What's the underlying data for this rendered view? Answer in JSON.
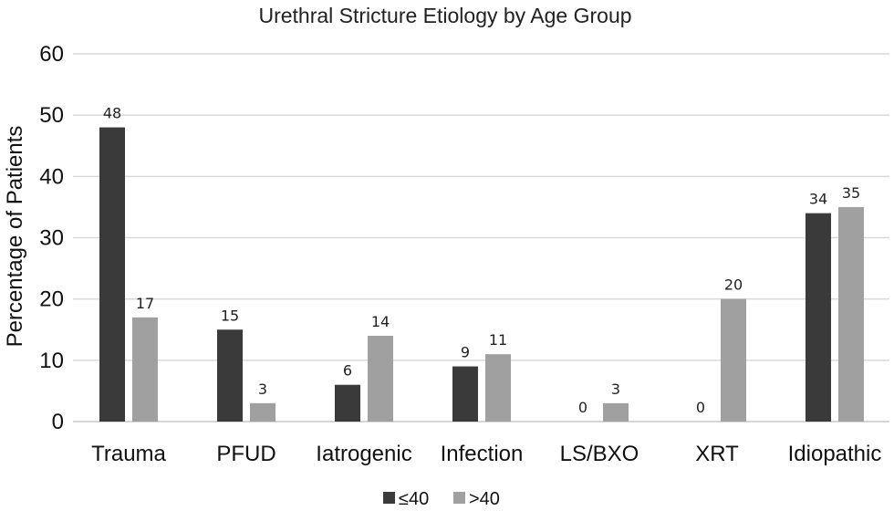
{
  "chart_data": {
    "type": "bar",
    "title": "Urethral Stricture Etiology by Age Group",
    "ylabel": "Percentage of Patients",
    "xlabel": "",
    "ylim": [
      0,
      60
    ],
    "yticks": [
      0,
      10,
      20,
      30,
      40,
      50,
      60
    ],
    "grid": true,
    "legend_position": "bottom",
    "categories": [
      "Trauma",
      "PFUD",
      "Iatrogenic",
      "Infection",
      "LS/BXO",
      "XRT",
      "Idiopathic"
    ],
    "series": [
      {
        "name": "≤40",
        "color": "#3a3a3a",
        "values": [
          48,
          15,
          6,
          9,
          0,
          0,
          34
        ]
      },
      {
        "name": ">40",
        "color": "#a0a0a0",
        "values": [
          17,
          3,
          14,
          11,
          3,
          20,
          35
        ]
      }
    ]
  }
}
